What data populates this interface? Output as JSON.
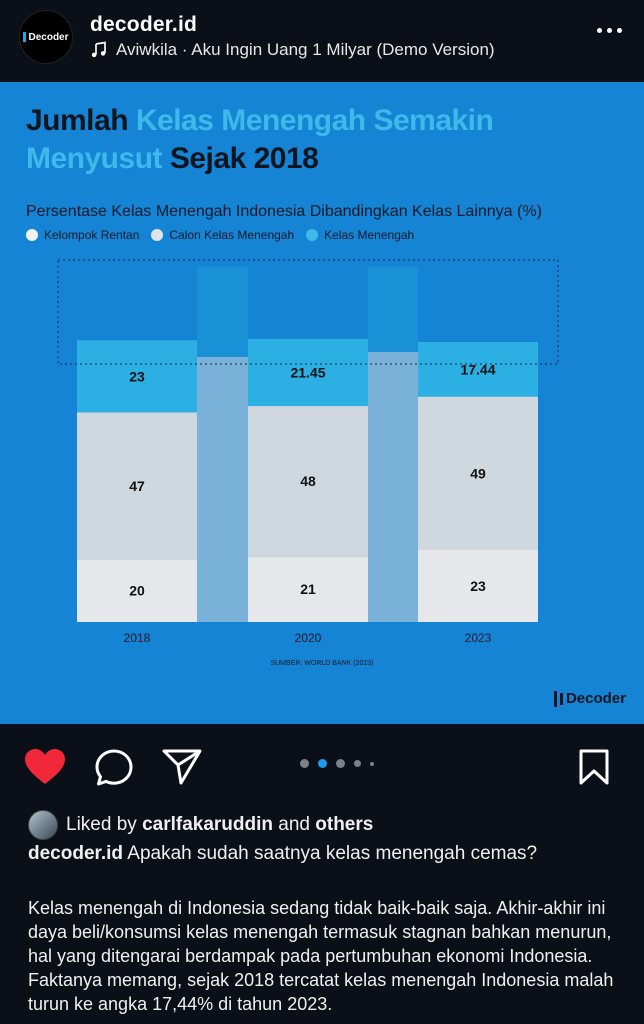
{
  "header": {
    "username": "decoder.id",
    "avatar_text": "Decoder",
    "music": "Aviwkila · Aku Ingin Uang 1 Milyar (Demo Version)"
  },
  "infographic": {
    "title_part1": "Jumlah",
    "title_part2": "Kelas Menengah Semakin",
    "title_part3": "Menyusut",
    "title_part4": "Sejak 2018",
    "subtitle": "Persentase Kelas Menengah Indonesia Dibandingkan Kelas Lainnya (%)",
    "legend": [
      "Kelompok Rentan",
      "Calon Kelas Menengah",
      "Kelas Menengah"
    ],
    "source": "SUMBER: WORLD BANK (2023)",
    "brand": "Decoder"
  },
  "chart_data": {
    "type": "bar",
    "stacked": true,
    "categories": [
      "2018",
      "2020",
      "2023"
    ],
    "series": [
      {
        "name": "Kelompok Rentan",
        "values": [
          20,
          21,
          23
        ],
        "color": "#e6e7ea"
      },
      {
        "name": "Calon Kelas Menengah",
        "values": [
          47,
          48,
          49
        ],
        "color": "#cfd8df"
      },
      {
        "name": "Kelas Menengah",
        "values": [
          23,
          21.45,
          17.44
        ],
        "color": "#2cb0e4"
      }
    ],
    "value_labels": [
      [
        "20",
        "21",
        "23"
      ],
      [
        "47",
        "48",
        "49"
      ],
      [
        "23",
        "21.45",
        "17.44"
      ]
    ],
    "title": "Persentase Kelas Menengah Indonesia Dibandingkan Kelas Lainnya (%)",
    "legend_position": "top-left",
    "grid": false
  },
  "actions": {
    "like": "heart-icon",
    "comment": "comment-icon",
    "share": "send-icon",
    "save": "bookmark-icon",
    "carousel_active_index": 1
  },
  "caption": {
    "liked_by_prefix": "Liked by",
    "liked_by_user": "carlfakaruddin",
    "liked_by_and": "and",
    "liked_by_others": "others",
    "author": "decoder.id",
    "first_line": "Apakah sudah saatnya kelas menengah cemas?",
    "body": "Kelas menengah di Indonesia sedang tidak baik-baik saja. Akhir-akhir ini daya beli/konsumsi kelas menengah termasuk stagnan bahkan menurun, hal yang ditengarai berdampak pada pertumbuhan ekonomi Indonesia. Faktanya memang, sejak 2018 tercatat kelas menengah Indonesia malah turun ke angka 17,44% di tahun 2023."
  },
  "colors": {
    "background": "#0b0f17",
    "post_bg": "#1684d4",
    "accent": "#3fb9ea",
    "like_red": "#f0283a",
    "carousel_active": "#1e9bf0"
  }
}
